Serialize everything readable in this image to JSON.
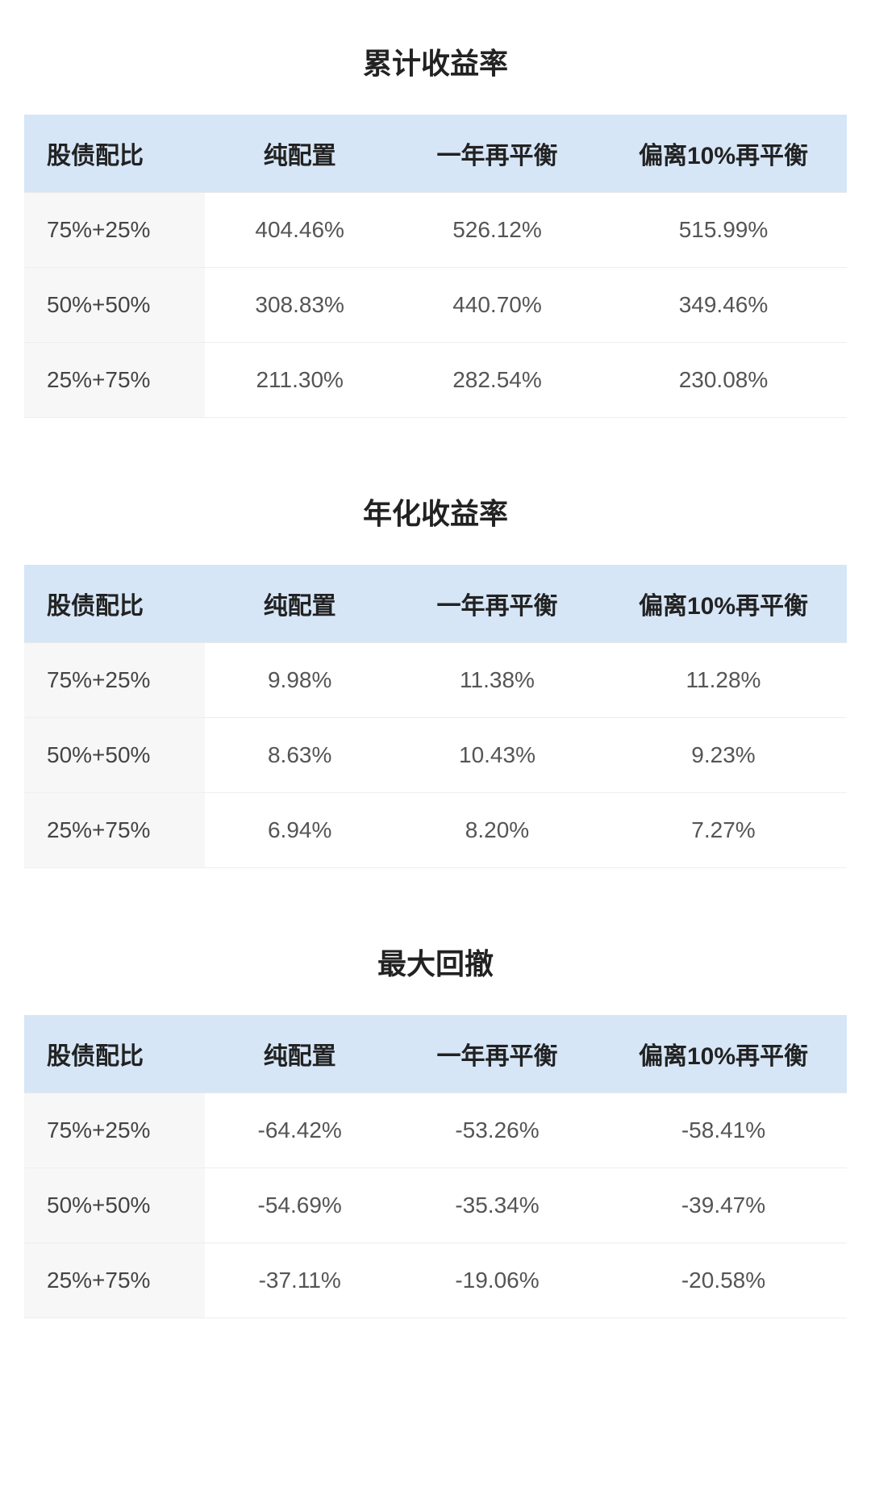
{
  "styles": {
    "background_color": "#ffffff",
    "header_bg": "#d6e6f7",
    "first_col_bg": "#f7f7f7",
    "border_color": "#eeeeee",
    "title_fontsize": 36,
    "header_fontsize": 30,
    "cell_fontsize": 28,
    "title_color": "#222222",
    "cell_color": "#555555",
    "col_widths_pct": [
      22,
      23,
      25,
      30
    ]
  },
  "tables": [
    {
      "title": "累计收益率",
      "columns": [
        "股债配比",
        "纯配置",
        "一年再平衡",
        "偏离10%再平衡"
      ],
      "rows": [
        [
          "75%+25%",
          "404.46%",
          "526.12%",
          "515.99%"
        ],
        [
          "50%+50%",
          "308.83%",
          "440.70%",
          "349.46%"
        ],
        [
          "25%+75%",
          "211.30%",
          "282.54%",
          "230.08%"
        ]
      ]
    },
    {
      "title": "年化收益率",
      "columns": [
        "股债配比",
        "纯配置",
        "一年再平衡",
        "偏离10%再平衡"
      ],
      "rows": [
        [
          "75%+25%",
          "9.98%",
          "11.38%",
          "11.28%"
        ],
        [
          "50%+50%",
          "8.63%",
          "10.43%",
          "9.23%"
        ],
        [
          "25%+75%",
          "6.94%",
          "8.20%",
          "7.27%"
        ]
      ]
    },
    {
      "title": "最大回撤",
      "columns": [
        "股债配比",
        "纯配置",
        "一年再平衡",
        "偏离10%再平衡"
      ],
      "rows": [
        [
          "75%+25%",
          "-64.42%",
          "-53.26%",
          "-58.41%"
        ],
        [
          "50%+50%",
          "-54.69%",
          "-35.34%",
          "-39.47%"
        ],
        [
          "25%+75%",
          "-37.11%",
          "-19.06%",
          "-20.58%"
        ]
      ]
    }
  ]
}
